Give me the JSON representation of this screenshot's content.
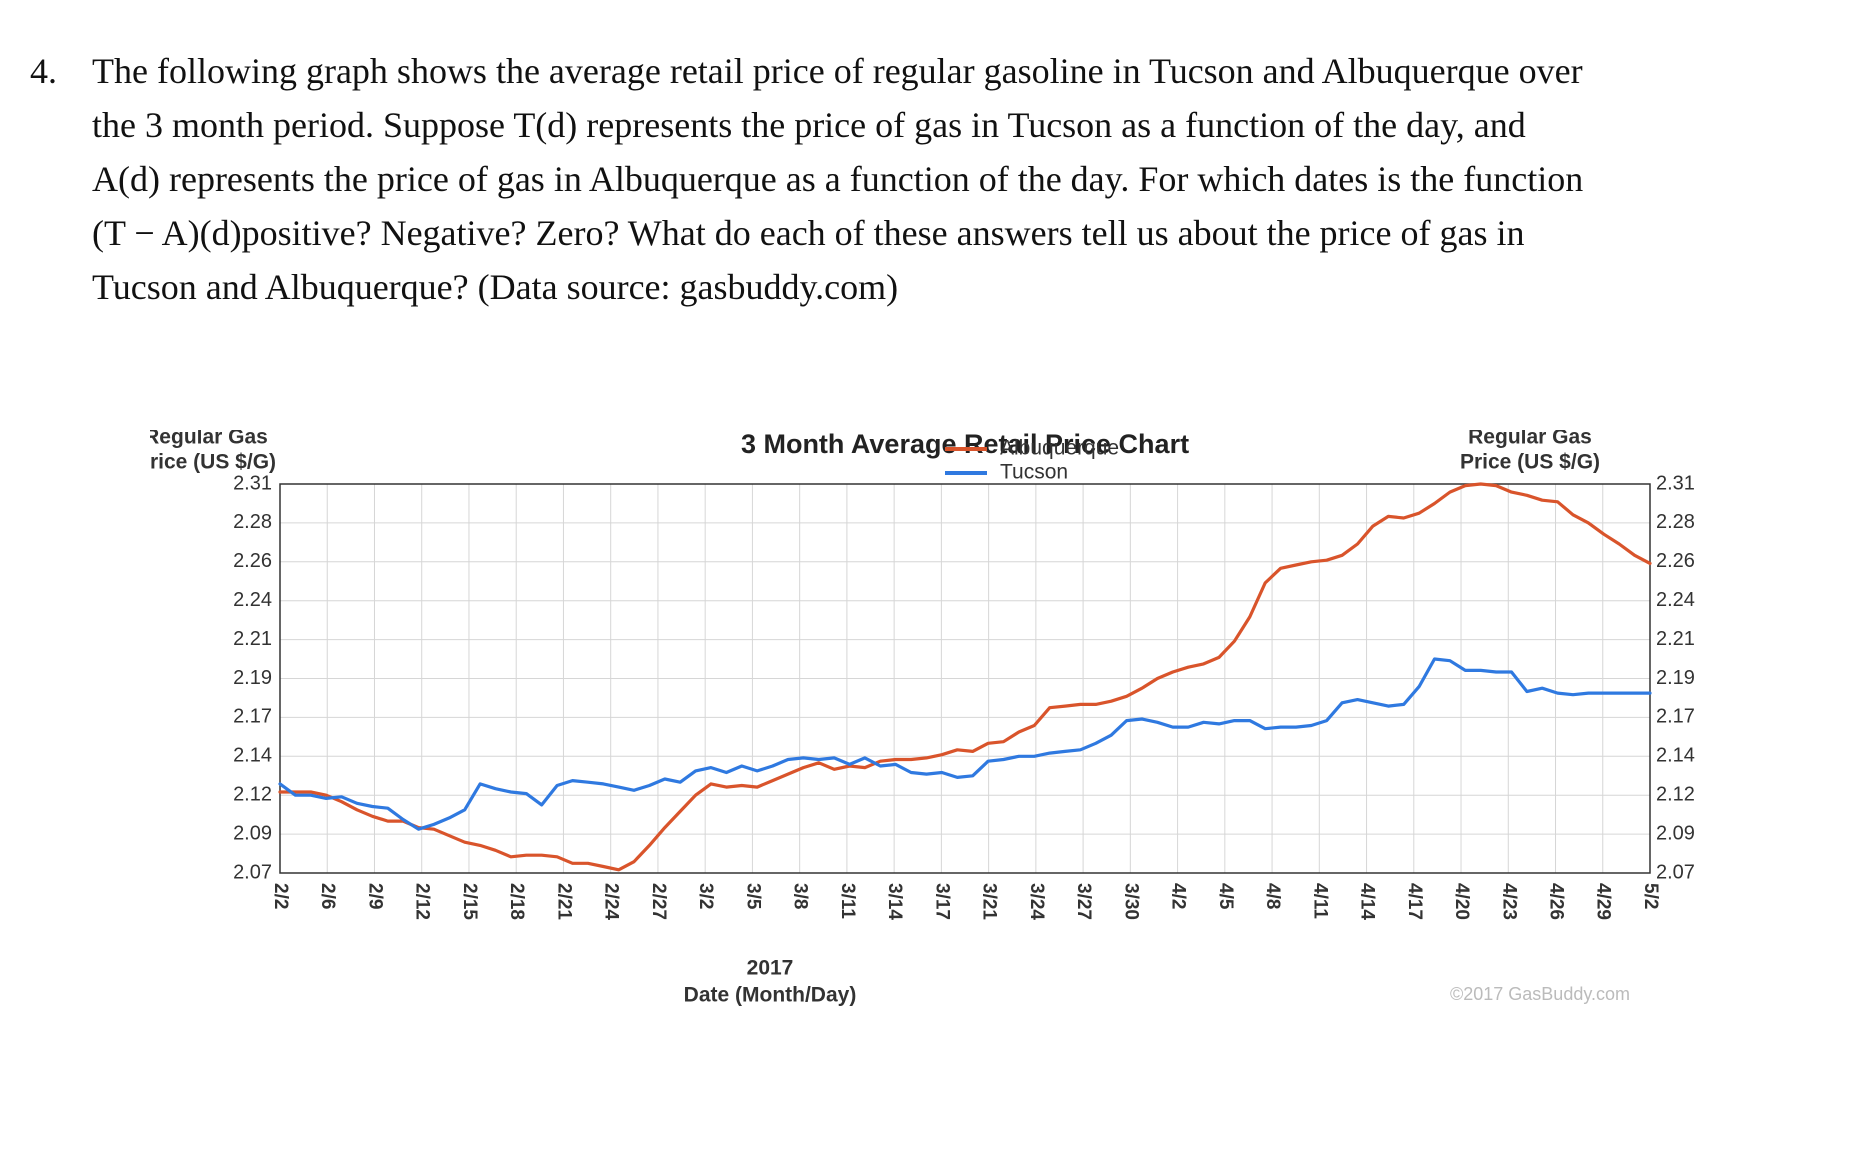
{
  "problem": {
    "number": "4.",
    "lines": [
      "The following graph shows the average retail price of regular gasoline in Tucson and Albuquerque over",
      "the 3 month period.  Suppose T(d) represents the price of gas in Tucson as a function of the day, and",
      "A(d) represents the price of gas in Albuquerque as a function of the day.  For which dates is the function",
      "(T − A)(d)positive?  Negative?  Zero?  What do each of these answers tell us about the price of gas in",
      "Tucson and Albuquerque?  (Data source: gasbuddy.com)"
    ]
  },
  "chart_data": {
    "type": "line",
    "title": "3 Month Average Retail Price Chart",
    "ylabel": "Regular Gas Price (US $/G)",
    "ylabel_lines": [
      "Regular Gas",
      "Price (US $/G)"
    ],
    "year_label": "2017",
    "xlabel": "Date (Month/Day)",
    "watermark": "©2017 GasBuddy.com",
    "ylim": [
      2.07,
      2.31
    ],
    "y_tick_labels": [
      "2.31",
      "2.28",
      "2.26",
      "2.24",
      "2.21",
      "2.19",
      "2.17",
      "2.14",
      "2.12",
      "2.09",
      "2.07"
    ],
    "x_tick_labels": [
      "2/2",
      "2/6",
      "2/9",
      "2/12",
      "2/15",
      "2/18",
      "2/21",
      "2/24",
      "2/27",
      "3/2",
      "3/5",
      "3/8",
      "3/11",
      "3/14",
      "3/17",
      "3/21",
      "3/24",
      "3/27",
      "3/30",
      "4/2",
      "4/5",
      "4/8",
      "4/11",
      "4/14",
      "4/17",
      "4/20",
      "4/23",
      "4/26",
      "4/29",
      "5/2"
    ],
    "x_days": [
      1,
      2,
      3,
      4,
      5,
      6,
      7,
      8,
      9,
      10,
      11,
      12,
      13,
      14,
      15,
      16,
      17,
      18,
      19,
      20,
      21,
      22,
      23,
      24,
      25,
      26,
      27,
      28,
      29,
      30,
      31,
      32,
      33,
      34,
      35,
      36,
      37,
      38,
      39,
      40,
      41,
      42,
      43,
      44,
      45,
      46,
      47,
      48,
      49,
      50,
      51,
      52,
      53,
      54,
      55,
      56,
      57,
      58,
      59,
      60,
      61,
      62,
      63,
      64,
      65,
      66,
      67,
      68,
      69,
      70,
      71,
      72,
      73,
      74,
      75,
      76,
      77,
      78,
      79,
      80,
      81,
      82,
      83,
      84,
      85,
      86,
      87,
      88,
      89,
      90
    ],
    "x_range": [
      1,
      90
    ],
    "grid": true,
    "legend_position": "top-right",
    "series": [
      {
        "name": "Albuquerque",
        "color": "#d9542b",
        "values": [
          2.12,
          2.12,
          2.12,
          2.118,
          2.114,
          2.109,
          2.105,
          2.102,
          2.102,
          2.098,
          2.097,
          2.093,
          2.089,
          2.087,
          2.084,
          2.08,
          2.081,
          2.081,
          2.08,
          2.076,
          2.076,
          2.074,
          2.072,
          2.077,
          2.087,
          2.098,
          2.108,
          2.118,
          2.125,
          2.123,
          2.124,
          2.123,
          2.127,
          2.131,
          2.135,
          2.138,
          2.134,
          2.136,
          2.135,
          2.139,
          2.14,
          2.14,
          2.141,
          2.143,
          2.146,
          2.145,
          2.15,
          2.151,
          2.157,
          2.161,
          2.172,
          2.173,
          2.174,
          2.174,
          2.176,
          2.179,
          2.184,
          2.19,
          2.194,
          2.197,
          2.199,
          2.203,
          2.213,
          2.228,
          2.249,
          2.258,
          2.26,
          2.262,
          2.263,
          2.266,
          2.273,
          2.284,
          2.29,
          2.289,
          2.292,
          2.298,
          2.305,
          2.309,
          2.31,
          2.309,
          2.305,
          2.303,
          2.3,
          2.299,
          2.291,
          2.286,
          2.279,
          2.273,
          2.266,
          2.261
        ]
      },
      {
        "name": "Tucson",
        "color": "#2f79e0",
        "values": [
          2.125,
          2.118,
          2.118,
          2.116,
          2.117,
          2.113,
          2.111,
          2.11,
          2.103,
          2.097,
          2.1,
          2.104,
          2.109,
          2.125,
          2.122,
          2.12,
          2.119,
          2.112,
          2.124,
          2.127,
          2.126,
          2.125,
          2.123,
          2.121,
          2.124,
          2.128,
          2.126,
          2.133,
          2.135,
          2.132,
          2.136,
          2.133,
          2.136,
          2.14,
          2.141,
          2.14,
          2.141,
          2.137,
          2.141,
          2.136,
          2.137,
          2.132,
          2.131,
          2.132,
          2.129,
          2.13,
          2.139,
          2.14,
          2.142,
          2.142,
          2.144,
          2.145,
          2.146,
          2.15,
          2.155,
          2.164,
          2.165,
          2.163,
          2.16,
          2.16,
          2.163,
          2.162,
          2.164,
          2.164,
          2.159,
          2.16,
          2.16,
          2.161,
          2.164,
          2.175,
          2.177,
          2.175,
          2.173,
          2.174,
          2.185,
          2.202,
          2.201,
          2.195,
          2.195,
          2.194,
          2.194,
          2.182,
          2.184,
          2.181,
          2.18,
          2.181,
          2.181,
          2.181,
          2.181,
          2.181
        ]
      }
    ]
  }
}
